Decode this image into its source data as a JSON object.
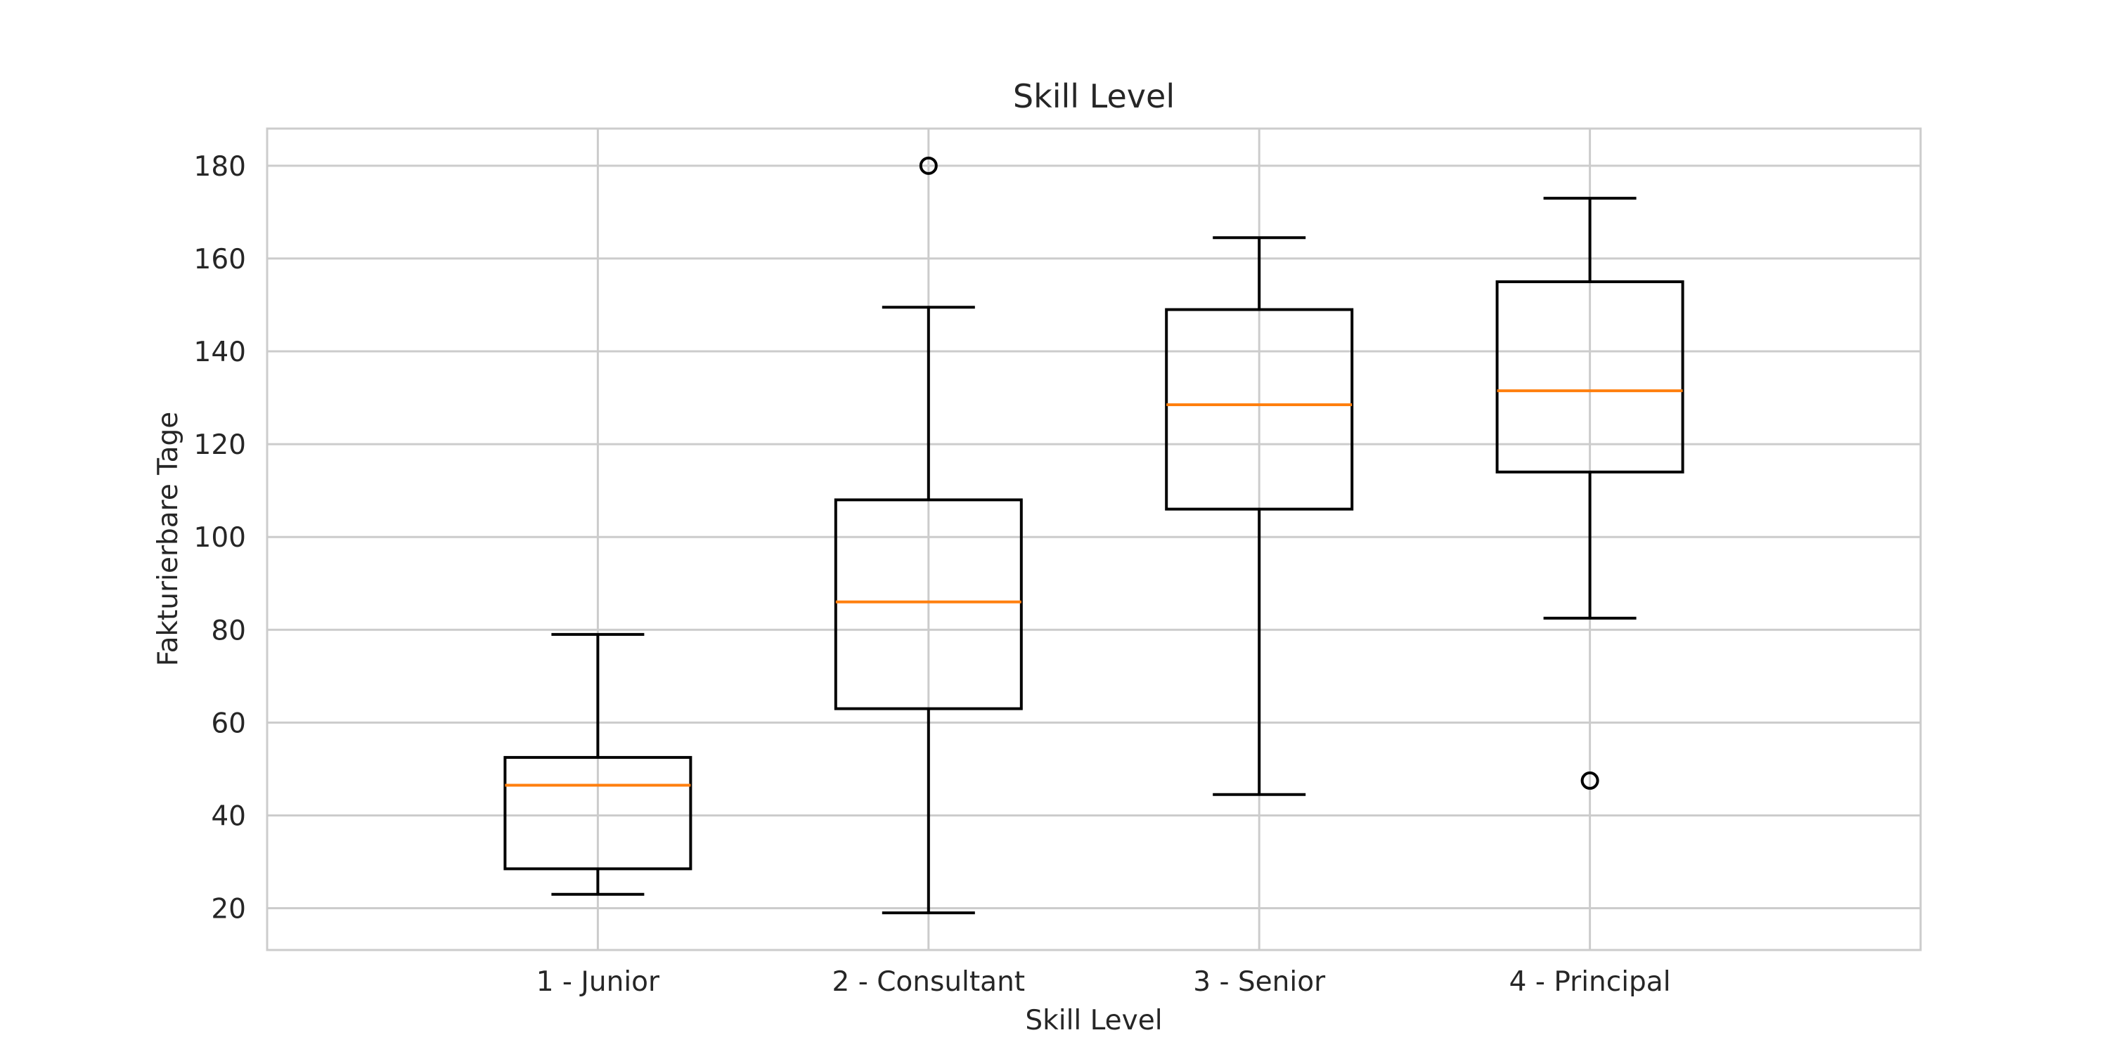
{
  "chart_data": {
    "type": "box",
    "title": "Skill Level",
    "xlabel": "Skill Level",
    "ylabel": "Fakturierbare Tage",
    "ylim": [
      11,
      188
    ],
    "yticks": [
      20,
      40,
      60,
      80,
      100,
      120,
      140,
      160,
      180
    ],
    "grid": true,
    "categories": [
      "1 - Junior",
      "2 - Consultant",
      "3 - Senior",
      "4 - Principal"
    ],
    "boxes": [
      {
        "whisker_low": 23,
        "q1": 28.5,
        "median": 46.5,
        "q3": 52.5,
        "whisker_high": 79,
        "outliers": []
      },
      {
        "whisker_low": 19,
        "q1": 63,
        "median": 86,
        "q3": 108,
        "whisker_high": 149.5,
        "outliers": [
          180
        ]
      },
      {
        "whisker_low": 44.5,
        "q1": 106,
        "median": 128.5,
        "q3": 149,
        "whisker_high": 164.5,
        "outliers": []
      },
      {
        "whisker_low": 82.5,
        "q1": 114,
        "median": 131.5,
        "q3": 155,
        "whisker_high": 173,
        "outliers": [
          47.5
        ]
      }
    ],
    "colors": {
      "box": "#000000",
      "median": "#ff7f0e",
      "grid": "#cccccc",
      "frame": "#cccccc",
      "text": "#262626"
    }
  }
}
